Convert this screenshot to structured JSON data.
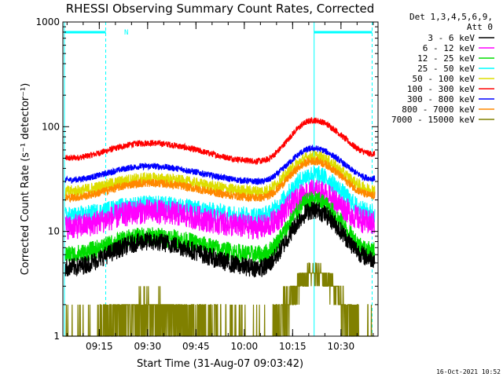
{
  "chart_data": {
    "type": "line",
    "title": "RHESSI Observing Summary Count Rates, Corrected",
    "xlabel": "Start Time (31-Aug-07 09:03:42)",
    "ylabel": "Corrected Count Rate (s⁻¹ detector⁻¹)",
    "yscale": "log",
    "ylim": [
      1,
      1000
    ],
    "xlim": [
      "09:03:42",
      "10:41:30"
    ],
    "x_ticks": [
      "09:15",
      "09:30",
      "09:45",
      "10:00",
      "10:15",
      "10:30"
    ],
    "y_ticks": [
      "1",
      "10",
      "100",
      "1000"
    ],
    "legend_header": [
      "Det 1,3,4,5,6,9,",
      "Att 0"
    ],
    "legend_position": "right",
    "flag_N": "N",
    "footer_timestamp": "16-Oct-2021 10:52",
    "markers": {
      "night_end": "09:17:00",
      "night_start": "10:39:40",
      "saa_line": "10:21:40"
    },
    "series": [
      {
        "name": "3 - 6 keV",
        "color": "#000000",
        "base": [
          4.5,
          8.0,
          4.5,
          16.0,
          5.5
        ]
      },
      {
        "name": "6 - 12 keV",
        "color": "#ff00ff",
        "base": [
          11.0,
          15.5,
          11.0,
          24.0,
          12.0
        ]
      },
      {
        "name": "12 - 25 keV",
        "color": "#00dd00",
        "base": [
          6.0,
          9.0,
          6.0,
          20.0,
          6.5
        ]
      },
      {
        "name": "25 - 50 keV",
        "color": "#00ffff",
        "base": [
          14.0,
          18.0,
          14.0,
          35.0,
          15.0
        ]
      },
      {
        "name": "50 - 100 keV",
        "color": "#dddd00",
        "base": [
          24.0,
          32.0,
          24.0,
          52.0,
          25.0
        ]
      },
      {
        "name": "100 - 300 keV",
        "color": "#ff0000",
        "base": [
          50.0,
          70.0,
          47.0,
          115.0,
          55.0
        ]
      },
      {
        "name": "300 - 800 keV",
        "color": "#0000ff",
        "base": [
          31.0,
          42.0,
          30.0,
          62.0,
          32.0
        ]
      },
      {
        "name": "800 - 7000 keV",
        "color": "#ff8800",
        "base": [
          21.0,
          29.0,
          21.0,
          47.0,
          22.0
        ]
      },
      {
        "name": "7000 - 15000 keV",
        "color": "#808000",
        "base": [
          1.0,
          1.8,
          1.0,
          4.0,
          1.0
        ]
      }
    ]
  }
}
